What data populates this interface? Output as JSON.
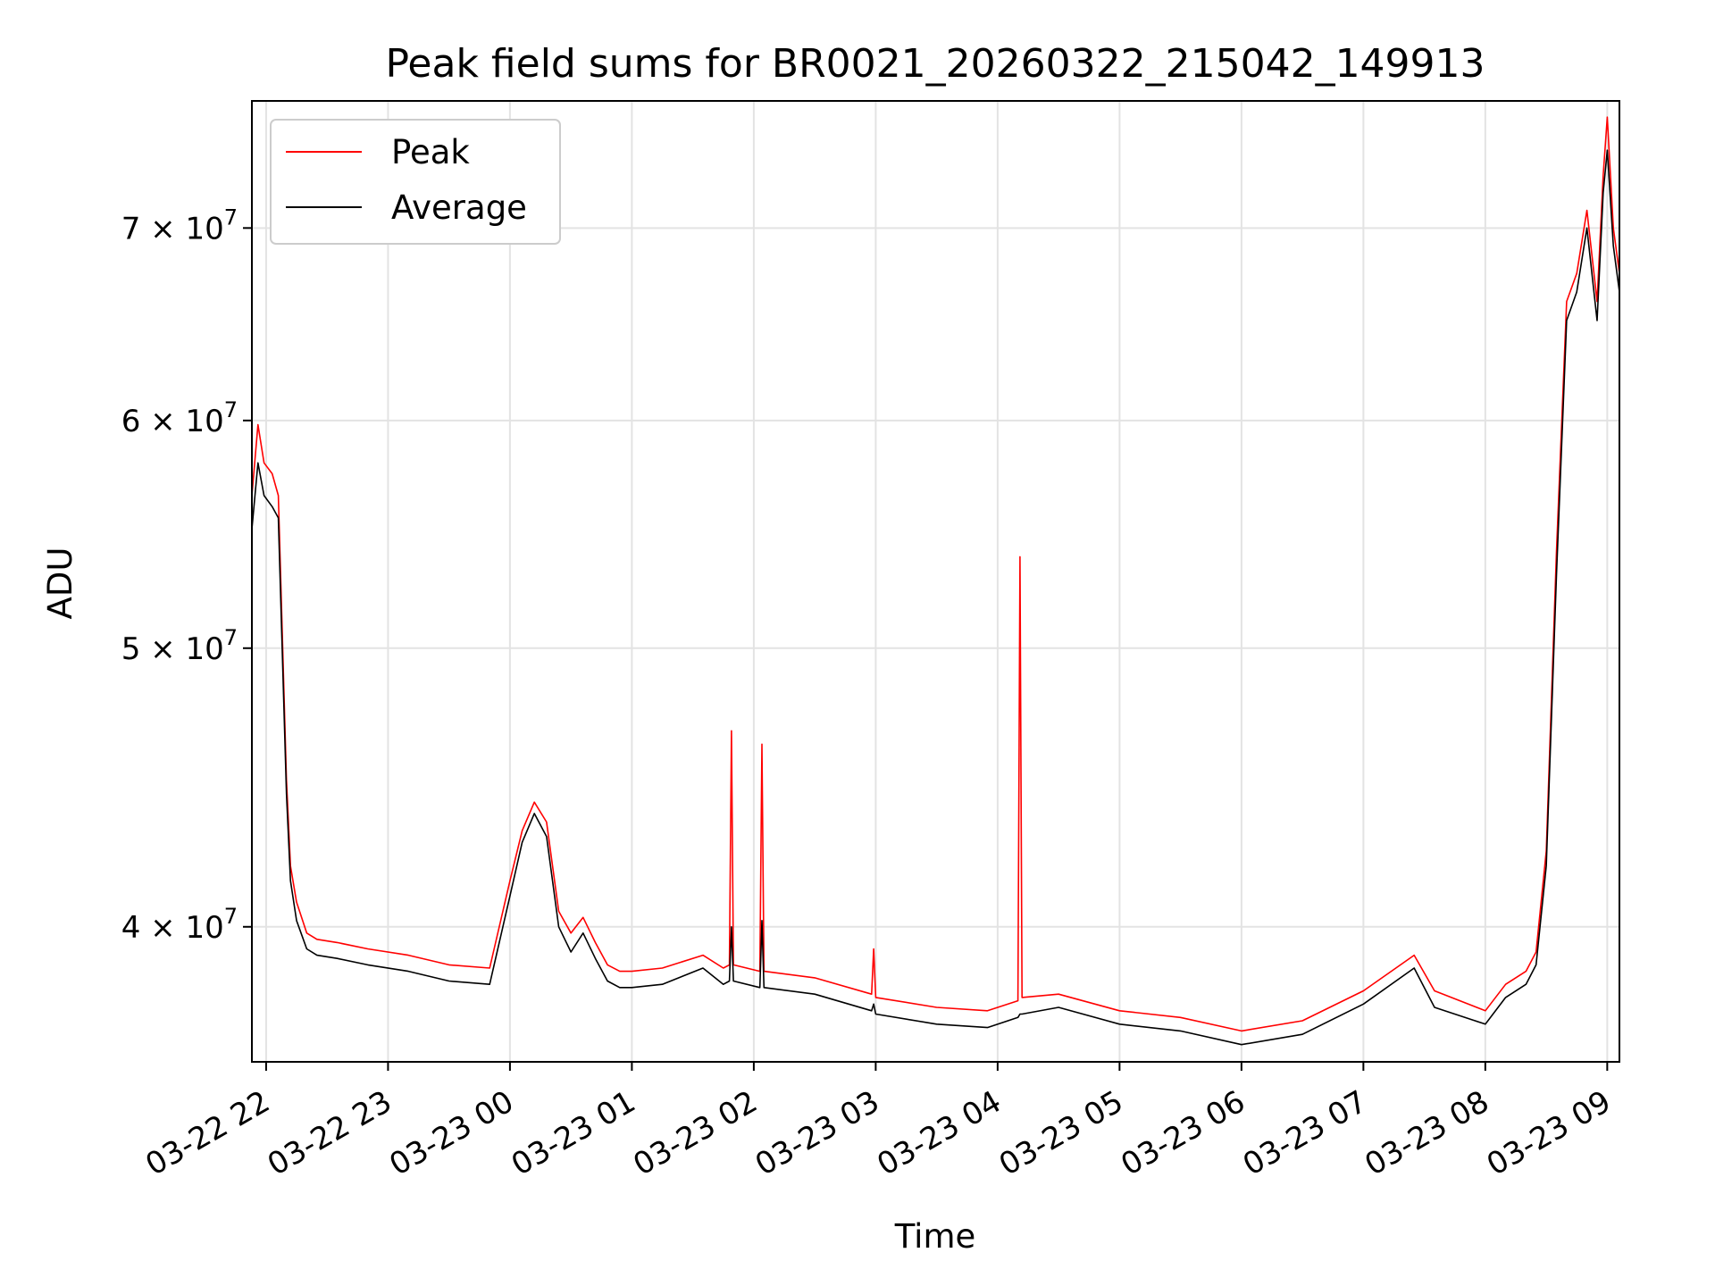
{
  "chart_data": {
    "type": "line",
    "title": "Peak field sums for BR0021_20260322_215042_149913",
    "xlabel": "Time",
    "ylabel": "ADU",
    "y_scale": "log",
    "ylim": [
      35900000,
      77500000
    ],
    "xlim": [
      "2026-03-22 21:53",
      "2026-03-23 09:06"
    ],
    "grid": true,
    "legend_placement": "top-left",
    "x_tick_labels": [
      "03-22 22",
      "03-22 23",
      "03-23 00",
      "03-23 01",
      "03-23 02",
      "03-23 03",
      "03-23 04",
      "03-23 05",
      "03-23 06",
      "03-23 07",
      "03-23 08",
      "03-23 09"
    ],
    "y_ticks": [
      {
        "value": 40000000,
        "mantissa": "4",
        "exponent": "7"
      },
      {
        "value": 50000000,
        "mantissa": "5",
        "exponent": "7"
      },
      {
        "value": 60000000,
        "mantissa": "6",
        "exponent": "7"
      },
      {
        "value": 70000000,
        "mantissa": "7",
        "exponent": "7"
      }
    ],
    "series": [
      {
        "name": "Peak",
        "color": "#ff0000",
        "x": [
          "2026-03-22 21:53",
          "2026-03-22 21:56",
          "2026-03-22 21:59",
          "2026-03-22 22:03",
          "2026-03-22 22:06",
          "2026-03-22 22:10",
          "2026-03-22 22:12",
          "2026-03-22 22:15",
          "2026-03-22 22:20",
          "2026-03-22 22:25",
          "2026-03-22 22:35",
          "2026-03-22 22:50",
          "2026-03-22 23:10",
          "2026-03-22 23:30",
          "2026-03-22 23:50",
          "2026-03-23 00:00",
          "2026-03-23 00:06",
          "2026-03-23 00:12",
          "2026-03-23 00:18",
          "2026-03-23 00:24",
          "2026-03-23 00:30",
          "2026-03-23 00:36",
          "2026-03-23 00:42",
          "2026-03-23 00:48",
          "2026-03-23 00:54",
          "2026-03-23 01:00",
          "2026-03-23 01:15",
          "2026-03-23 01:35",
          "2026-03-23 01:45",
          "2026-03-23 01:48",
          "2026-03-23 01:49",
          "2026-03-23 01:50",
          "2026-03-23 02:03",
          "2026-03-23 02:04",
          "2026-03-23 02:05",
          "2026-03-23 02:30",
          "2026-03-23 02:58",
          "2026-03-23 02:59",
          "2026-03-23 03:00",
          "2026-03-23 03:30",
          "2026-03-23 03:55",
          "2026-03-23 04:10",
          "2026-03-23 04:11",
          "2026-03-23 04:12",
          "2026-03-23 04:30",
          "2026-03-23 05:00",
          "2026-03-23 05:30",
          "2026-03-23 06:00",
          "2026-03-23 06:30",
          "2026-03-23 07:00",
          "2026-03-23 07:25",
          "2026-03-23 07:35",
          "2026-03-23 08:00",
          "2026-03-23 08:10",
          "2026-03-23 08:20",
          "2026-03-23 08:25",
          "2026-03-23 08:30",
          "2026-03-23 08:35",
          "2026-03-23 08:40",
          "2026-03-23 08:45",
          "2026-03-23 08:50",
          "2026-03-23 08:55",
          "2026-03-23 08:58",
          "2026-03-23 09:00",
          "2026-03-23 09:03",
          "2026-03-23 09:06"
        ],
        "y": [
          56500000,
          59800000,
          58000000,
          57500000,
          56500000,
          45000000,
          42000000,
          40800000,
          39800000,
          39600000,
          39500000,
          39300000,
          39100000,
          38800000,
          38700000,
          41500000,
          43200000,
          44200000,
          43500000,
          40500000,
          39800000,
          40300000,
          39500000,
          38800000,
          38600000,
          38600000,
          38700000,
          39100000,
          38700000,
          38800000,
          46800000,
          38800000,
          38600000,
          46300000,
          38600000,
          38400000,
          37900000,
          39300000,
          37800000,
          37500000,
          37400000,
          37700000,
          53800000,
          37800000,
          37900000,
          37400000,
          37200000,
          36800000,
          37100000,
          38000000,
          39100000,
          38000000,
          37400000,
          38200000,
          38600000,
          39200000,
          42500000,
          54000000,
          66000000,
          67500000,
          71000000,
          66000000,
          73000000,
          76500000,
          70000000,
          67500000
        ]
      },
      {
        "name": "Average",
        "color": "#000000",
        "x": [
          "2026-03-22 21:53",
          "2026-03-22 21:56",
          "2026-03-22 21:59",
          "2026-03-22 22:03",
          "2026-03-22 22:06",
          "2026-03-22 22:10",
          "2026-03-22 22:12",
          "2026-03-22 22:15",
          "2026-03-22 22:20",
          "2026-03-22 22:25",
          "2026-03-22 22:35",
          "2026-03-22 22:50",
          "2026-03-22 23:10",
          "2026-03-22 23:30",
          "2026-03-22 23:50",
          "2026-03-23 00:00",
          "2026-03-23 00:06",
          "2026-03-23 00:12",
          "2026-03-23 00:18",
          "2026-03-23 00:24",
          "2026-03-23 00:30",
          "2026-03-23 00:36",
          "2026-03-23 00:42",
          "2026-03-23 00:48",
          "2026-03-23 00:54",
          "2026-03-23 01:00",
          "2026-03-23 01:15",
          "2026-03-23 01:35",
          "2026-03-23 01:45",
          "2026-03-23 01:48",
          "2026-03-23 01:49",
          "2026-03-23 01:50",
          "2026-03-23 02:03",
          "2026-03-23 02:04",
          "2026-03-23 02:05",
          "2026-03-23 02:30",
          "2026-03-23 02:58",
          "2026-03-23 02:59",
          "2026-03-23 03:00",
          "2026-03-23 03:30",
          "2026-03-23 03:55",
          "2026-03-23 04:10",
          "2026-03-23 04:11",
          "2026-03-23 04:12",
          "2026-03-23 04:30",
          "2026-03-23 05:00",
          "2026-03-23 05:30",
          "2026-03-23 06:00",
          "2026-03-23 06:30",
          "2026-03-23 07:00",
          "2026-03-23 07:25",
          "2026-03-23 07:35",
          "2026-03-23 08:00",
          "2026-03-23 08:10",
          "2026-03-23 08:20",
          "2026-03-23 08:25",
          "2026-03-23 08:30",
          "2026-03-23 08:35",
          "2026-03-23 08:40",
          "2026-03-23 08:45",
          "2026-03-23 08:50",
          "2026-03-23 08:55",
          "2026-03-23 08:58",
          "2026-03-23 09:00",
          "2026-03-23 09:03",
          "2026-03-23 09:06"
        ],
        "y": [
          55000000,
          58000000,
          56500000,
          56000000,
          55500000,
          44500000,
          41500000,
          40200000,
          39300000,
          39100000,
          39000000,
          38800000,
          38600000,
          38300000,
          38200000,
          41000000,
          42800000,
          43800000,
          43000000,
          40000000,
          39200000,
          39800000,
          39000000,
          38300000,
          38100000,
          38100000,
          38200000,
          38700000,
          38200000,
          38300000,
          40000000,
          38300000,
          38100000,
          40200000,
          38100000,
          37900000,
          37400000,
          37600000,
          37300000,
          37000000,
          36900000,
          37200000,
          37300000,
          37300000,
          37500000,
          37000000,
          36800000,
          36400000,
          36700000,
          37600000,
          38700000,
          37500000,
          37000000,
          37800000,
          38200000,
          38800000,
          42000000,
          53000000,
          65000000,
          66500000,
          70000000,
          65000000,
          72000000,
          74500000,
          69000000,
          66500000
        ]
      }
    ]
  }
}
